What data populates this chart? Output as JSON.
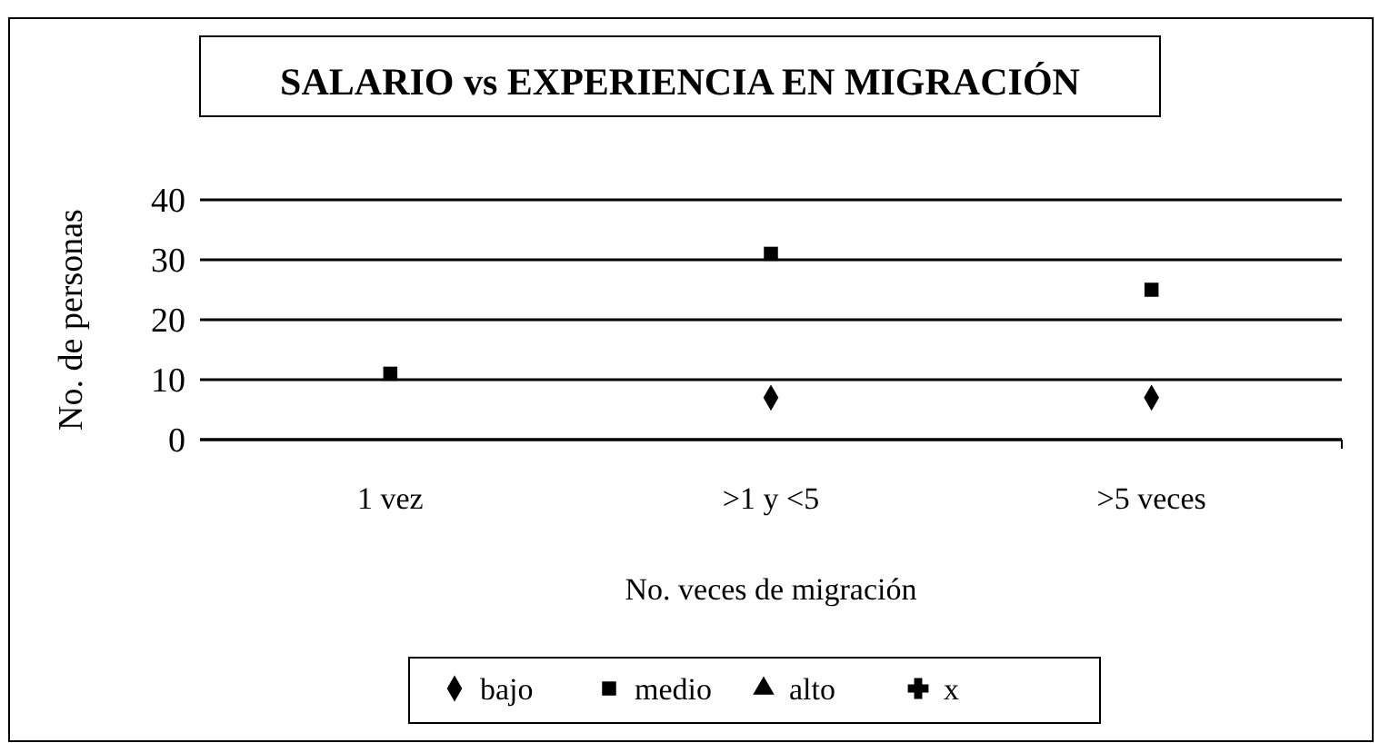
{
  "chart_data": {
    "type": "scatter",
    "title": "SALARIO vs EXPERIENCIA EN MIGRACIÓN",
    "xlabel": "No. veces de migración",
    "ylabel": "No. de personas",
    "categories": [
      "1 vez",
      ">1 y <5",
      ">5 veces"
    ],
    "ylim": [
      0,
      40
    ],
    "yticks": [
      0,
      10,
      20,
      30,
      40
    ],
    "grid": "y",
    "legend": "bottom",
    "series": [
      {
        "name": "bajo",
        "color": "#000000",
        "marker": "diamond",
        "values": [
          null,
          7,
          7
        ]
      },
      {
        "name": "medio",
        "color": "#000000",
        "marker": "square",
        "values": [
          11,
          31,
          25
        ]
      },
      {
        "name": "alto",
        "color": "#000000",
        "marker": "triangle",
        "values": [
          null,
          null,
          null
        ]
      },
      {
        "name": "x",
        "color": "#000000",
        "marker": "cross",
        "values": [
          null,
          null,
          null
        ]
      }
    ]
  }
}
